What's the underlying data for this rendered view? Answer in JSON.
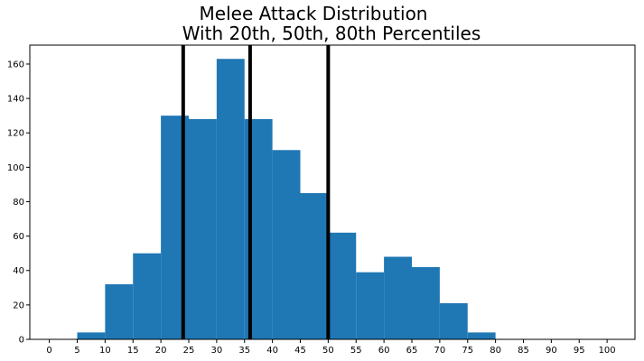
{
  "chart_data": {
    "type": "bar",
    "title": [
      "Melee Attack Distribution",
      "With 20th, 50th, 80th Percentiles"
    ],
    "xlabel": "",
    "ylabel": "",
    "xlim": [
      -3.5,
      105
    ],
    "ylim": [
      0,
      171
    ],
    "xticks": [
      0,
      5,
      10,
      15,
      20,
      25,
      30,
      35,
      40,
      45,
      50,
      55,
      60,
      65,
      70,
      75,
      80,
      85,
      90,
      95,
      100
    ],
    "yticks": [
      0,
      20,
      40,
      60,
      80,
      100,
      120,
      140,
      160
    ],
    "bin_edges": [
      5,
      10,
      15,
      20,
      25,
      30,
      35,
      40,
      45,
      50,
      55,
      60,
      65,
      70,
      75,
      80
    ],
    "values": [
      4,
      32,
      50,
      130,
      128,
      163,
      128,
      110,
      85,
      62,
      39,
      48,
      42,
      21,
      4
    ],
    "percentiles": [
      {
        "label": "20th",
        "x": 24
      },
      {
        "label": "50th",
        "x": 36
      },
      {
        "label": "80th",
        "x": 50
      }
    ],
    "bar_color": "#1f77b4",
    "line_color": "#000000",
    "grid": false,
    "legend": "none"
  }
}
